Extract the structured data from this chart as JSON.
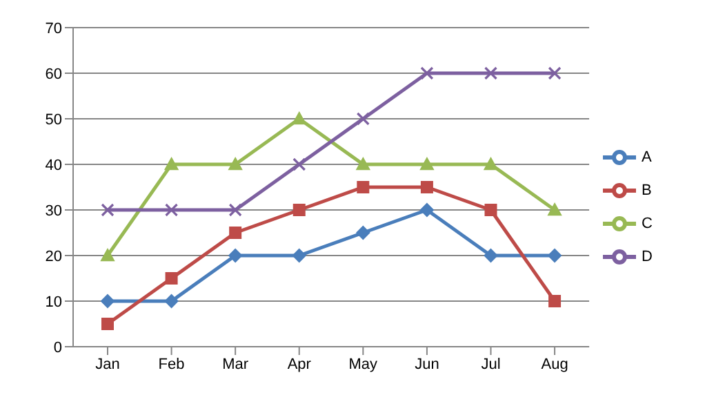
{
  "chart_data": {
    "type": "line",
    "categories": [
      "Jan",
      "Feb",
      "Mar",
      "Apr",
      "May",
      "Jun",
      "Jul",
      "Aug"
    ],
    "series": [
      {
        "name": "A",
        "color": "#4a7ebb",
        "marker": "diamond",
        "values": [
          10,
          10,
          20,
          20,
          25,
          30,
          20,
          20
        ]
      },
      {
        "name": "B",
        "color": "#be4b48",
        "marker": "square",
        "values": [
          5,
          15,
          25,
          30,
          35,
          35,
          30,
          10
        ]
      },
      {
        "name": "C",
        "color": "#98b954",
        "marker": "triangle",
        "values": [
          20,
          40,
          40,
          50,
          40,
          40,
          40,
          30
        ]
      },
      {
        "name": "D",
        "color": "#7d60a0",
        "marker": "cross",
        "values": [
          30,
          30,
          30,
          40,
          50,
          60,
          60,
          60
        ]
      }
    ],
    "ylim": [
      0,
      70
    ],
    "yticks": [
      0,
      10,
      20,
      30,
      40,
      50,
      60,
      70
    ],
    "grid": "y",
    "legend": "right",
    "line_style": "solid"
  }
}
